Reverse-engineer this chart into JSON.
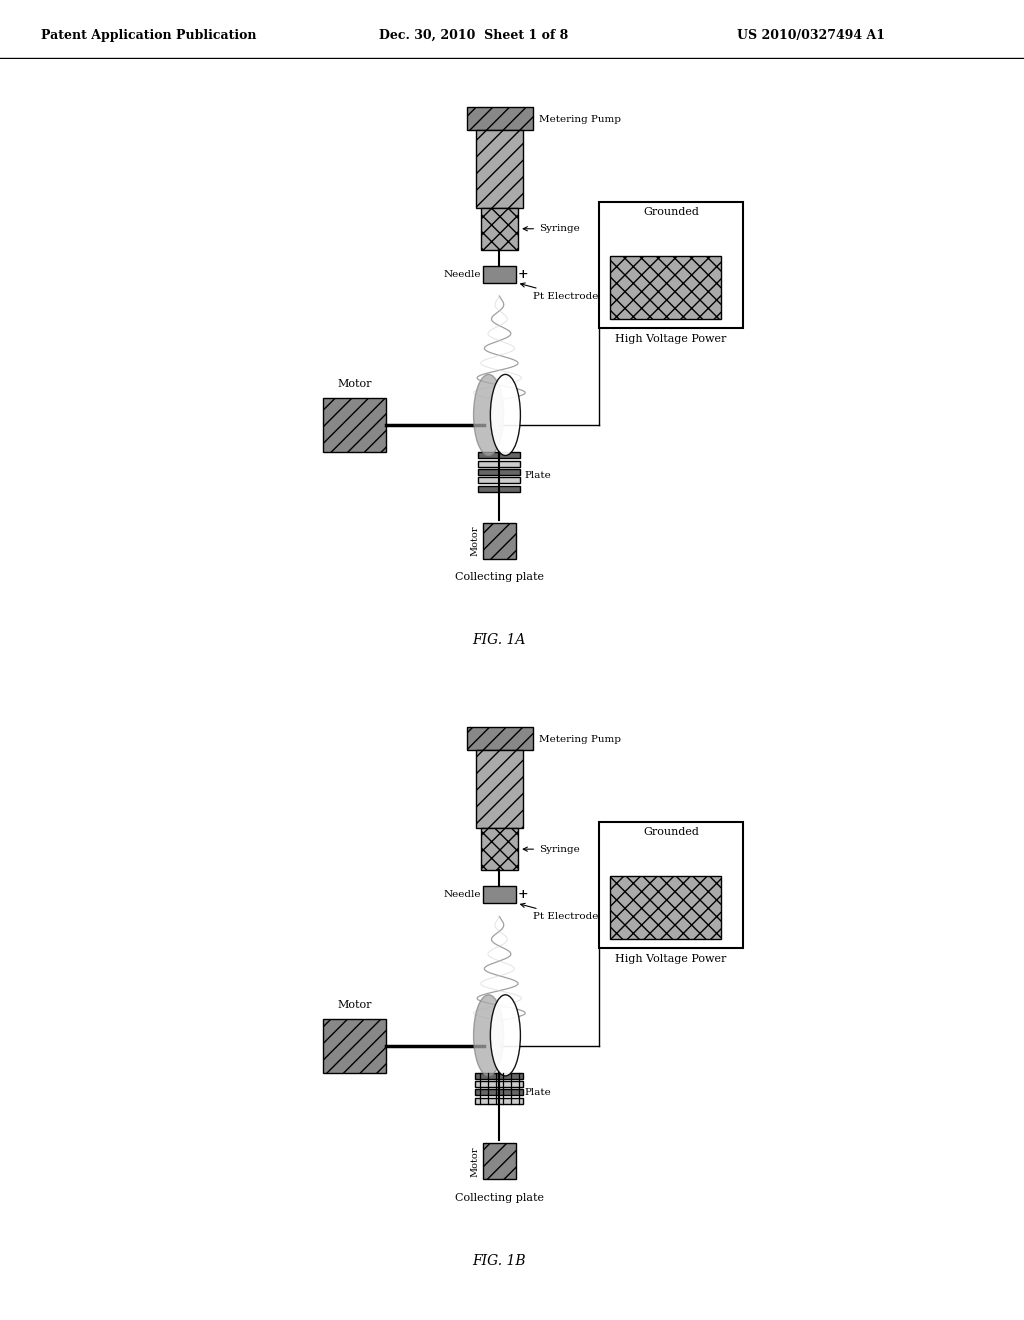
{
  "bg_color": "#ffffff",
  "header_left": "Patent Application Publication",
  "header_center": "Dec. 30, 2010  Sheet 1 of 8",
  "header_right": "US 2010/0327494 A1",
  "fig1a_label": "FIG. 1A",
  "fig1b_label": "FIG. 1B",
  "labels": {
    "metering_pump": "Metering Pump",
    "syringe": "Syringe",
    "needle": "Needle",
    "plus": "+",
    "pt_electrode": "Pt Electrode",
    "grounded": "Grounded",
    "high_voltage": "High Voltage Power",
    "motor_left": "Motor",
    "plate": "Plate",
    "motor_vert": "Motor",
    "collecting_plate": "Collecting plate"
  },
  "gray_light": "#aaaaaa",
  "gray_dark": "#666666",
  "gray_medium": "#888888",
  "black": "#000000"
}
